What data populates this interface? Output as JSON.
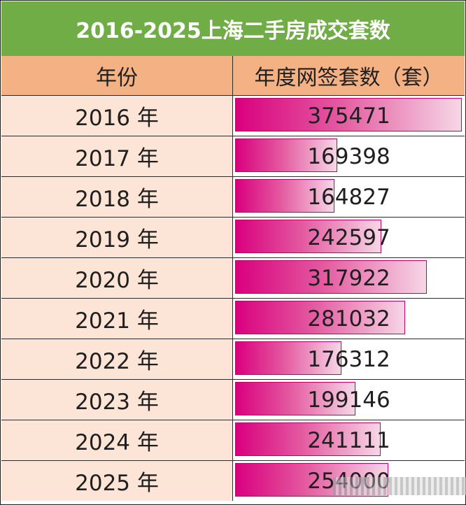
{
  "chart_data": {
    "type": "table",
    "title": "2016-2025上海二手房成交套数",
    "columns": [
      "年份",
      "年度网签套数（套）"
    ],
    "rows": [
      {
        "year": "2016 年",
        "value": 375471,
        "label": "375471"
      },
      {
        "year": "2017 年",
        "value": 169398,
        "label": "169398"
      },
      {
        "year": "2018 年",
        "value": 164827,
        "label": "164827"
      },
      {
        "year": "2019 年",
        "value": 242597,
        "label": "242597"
      },
      {
        "year": "2020 年",
        "value": 317922,
        "label": "317922"
      },
      {
        "year": "2021 年",
        "value": 281032,
        "label": "281032"
      },
      {
        "year": "2022 年",
        "value": 176312,
        "label": "176312"
      },
      {
        "year": "2023 年",
        "value": 199146,
        "label": "199146"
      },
      {
        "year": "2024 年",
        "value": 241111,
        "label": "241111"
      },
      {
        "year": "2025 年",
        "value": 254000,
        "label": "254000"
      }
    ],
    "bar_colors": {
      "start": "#d9007e",
      "mid": "#e3589f",
      "end": "#f6d6e6",
      "border": "#c4006a"
    }
  },
  "colors": {
    "title_bg": "#70ad47",
    "header_bg": "#f4b183",
    "year_bg": "#fce4d6"
  }
}
